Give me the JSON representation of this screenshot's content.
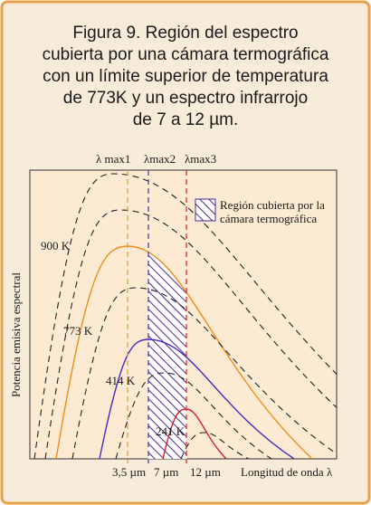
{
  "title": [
    "Figura 9. Región del espectro",
    "cubierta por una cámara termográfica",
    "con un límite superior de temperatura",
    "de 773K y un espectro infrarrojo",
    "de 7 a 12 µm."
  ],
  "top_labels": [
    "λ max1",
    "λmax2",
    "λmax3"
  ],
  "curve_labels": [
    "900 K",
    "773 K",
    "414 K",
    "241 K"
  ],
  "bottom_labels": [
    "3,5 µm",
    "7 µm",
    "12 µm"
  ],
  "x_axis_label": "Longitud de onda λ",
  "y_axis_label": "Potencia emisiva espectral",
  "legend": [
    "Región cubierta por la",
    "cámara termográfica"
  ]
}
